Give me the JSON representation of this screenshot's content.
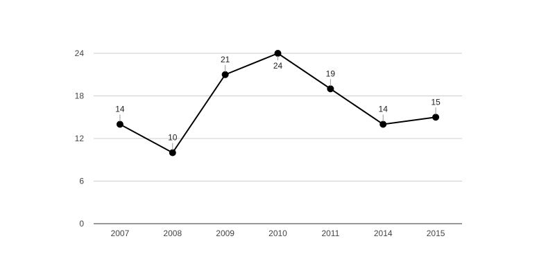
{
  "chart_data": {
    "type": "line",
    "title": "",
    "xlabel": "",
    "ylabel": "",
    "categories": [
      "2007",
      "2008",
      "2009",
      "2010",
      "2011",
      "2014",
      "2015"
    ],
    "series": [
      {
        "values": [
          14,
          10,
          21,
          24,
          19,
          14,
          15
        ]
      }
    ],
    "data_labels": [
      "14",
      "10",
      "21",
      "24",
      "19",
      "14",
      "15"
    ],
    "y_ticks": [
      "0",
      "6",
      "12",
      "18",
      "24"
    ],
    "ylim": [
      0,
      24
    ],
    "grid": true,
    "legend": "none",
    "colors": {
      "line": "#000000",
      "point": "#000000",
      "grid": "#cccccc"
    }
  }
}
